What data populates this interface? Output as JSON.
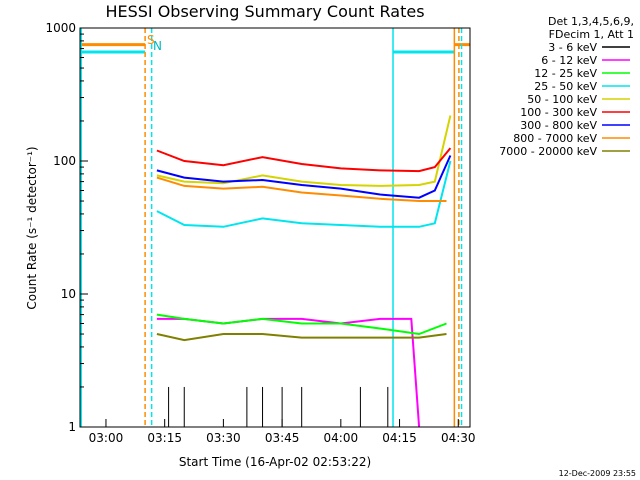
{
  "chart_data": {
    "type": "line",
    "title": "HESSI Observing Summary Count Rates",
    "xlabel": "Start Time (16-Apr-02 02:53:22)",
    "ylabel": "Count Rate (s⁻¹ detector⁻¹)",
    "x_scale": "time",
    "y_scale": "log",
    "xlim": [
      "02:53:22",
      "04:33:00"
    ],
    "ylim": [
      1,
      1000
    ],
    "x_ticks": [
      "03:00",
      "03:15",
      "03:30",
      "03:45",
      "04:00",
      "04:15",
      "04:30"
    ],
    "y_ticks": [
      "1",
      "10",
      "100",
      "1000"
    ],
    "grid": false,
    "legend_position": "top-right, outside plot",
    "legend_header": [
      "Det 1,3,4,5,6,9,",
      "FDecim 1, Att 1"
    ],
    "markers": [
      {
        "label": "S",
        "color": "#ff8c00"
      },
      {
        "label": "N",
        "color": "#00e5ee"
      }
    ],
    "vertical_lines": [
      {
        "time": "02:53:40",
        "color": "#00e5ee",
        "style": "solid"
      },
      {
        "time": "03:10:00",
        "color": "#ff8c00",
        "style": "dashed"
      },
      {
        "time": "03:11:40",
        "color": "#00e5ee",
        "style": "dashed"
      },
      {
        "time": "04:13:20",
        "color": "#00e5ee",
        "style": "solid"
      },
      {
        "time": "04:29:00",
        "color": "#ff8c00",
        "style": "solid"
      },
      {
        "time": "04:30:10",
        "color": "#ff8c00",
        "style": "dashed"
      },
      {
        "time": "04:30:50",
        "color": "#00e5ee",
        "style": "dashed"
      }
    ],
    "flags": [
      {
        "name": "S",
        "color": "#ff8c00",
        "level": 750,
        "ranges": [
          [
            "02:53:22",
            "03:10:00"
          ],
          [
            "04:29:00",
            "04:33:00"
          ]
        ]
      },
      {
        "name": "N",
        "color": "#00e5ee",
        "level": 660,
        "ranges": [
          [
            "02:53:22",
            "03:10:00"
          ],
          [
            "04:13:20",
            "04:29:00"
          ]
        ]
      }
    ],
    "series": [
      {
        "name": "3 - 6 keV",
        "color": "#000000",
        "x": [
          "03:16",
          "03:20",
          "03:36",
          "03:40",
          "03:45",
          "03:50",
          "04:05",
          "04:12"
        ],
        "y": [
          2.0,
          2.0,
          2.0,
          2.0,
          2.0,
          2.0,
          2.0,
          2.0
        ]
      },
      {
        "name": "6 - 12 keV",
        "color": "#ff00ff",
        "x": [
          "03:13",
          "03:20",
          "03:30",
          "03:40",
          "03:50",
          "04:00",
          "04:10",
          "04:18",
          "04:20"
        ],
        "y": [
          6.5,
          6.5,
          6.0,
          6.5,
          6.5,
          6.0,
          6.5,
          6.5,
          1.0
        ]
      },
      {
        "name": "12 - 25 keV",
        "color": "#00ff00",
        "x": [
          "03:13",
          "03:20",
          "03:30",
          "03:40",
          "03:50",
          "04:00",
          "04:10",
          "04:20",
          "04:27"
        ],
        "y": [
          7.0,
          6.5,
          6.0,
          6.5,
          6.0,
          6.0,
          5.5,
          5.0,
          6.0
        ]
      },
      {
        "name": "25 - 50 keV",
        "color": "#00e5ee",
        "x": [
          "03:13",
          "03:20",
          "03:30",
          "03:40",
          "03:50",
          "04:00",
          "04:10",
          "04:20",
          "04:24",
          "04:28"
        ],
        "y": [
          42,
          33,
          32,
          37,
          34,
          33,
          32,
          32,
          34,
          100
        ]
      },
      {
        "name": "50 - 100 keV",
        "color": "#d4d400",
        "x": [
          "03:13",
          "03:20",
          "03:30",
          "03:40",
          "03:50",
          "04:00",
          "04:10",
          "04:20",
          "04:24",
          "04:28"
        ],
        "y": [
          78,
          70,
          68,
          78,
          70,
          66,
          65,
          66,
          70,
          220
        ]
      },
      {
        "name": "100 - 300 keV",
        "color": "#ff0000",
        "x": [
          "03:13",
          "03:20",
          "03:30",
          "03:40",
          "03:50",
          "04:00",
          "04:10",
          "04:20",
          "04:24",
          "04:28"
        ],
        "y": [
          120,
          100,
          93,
          107,
          95,
          88,
          85,
          84,
          90,
          125
        ]
      },
      {
        "name": "300 - 800 keV",
        "color": "#0000ff",
        "x": [
          "03:13",
          "03:20",
          "03:30",
          "03:40",
          "03:50",
          "04:00",
          "04:10",
          "04:20",
          "04:24",
          "04:28"
        ],
        "y": [
          85,
          75,
          70,
          72,
          66,
          62,
          56,
          53,
          60,
          110
        ]
      },
      {
        "name": "800 - 7000 keV",
        "color": "#ff8c00",
        "x": [
          "03:13",
          "03:20",
          "03:30",
          "03:40",
          "03:50",
          "04:00",
          "04:10",
          "04:20",
          "04:27"
        ],
        "y": [
          75,
          65,
          62,
          64,
          58,
          55,
          52,
          50,
          50
        ]
      },
      {
        "name": "7000 - 20000 keV",
        "color": "#808000",
        "x": [
          "03:13",
          "03:20",
          "03:30",
          "03:40",
          "03:50",
          "04:00",
          "04:10",
          "04:20",
          "04:27"
        ],
        "y": [
          5.0,
          4.5,
          5.0,
          5.0,
          4.7,
          4.7,
          4.7,
          4.7,
          5.0
        ]
      }
    ],
    "footer_date": "12-Dec-2009 23:55"
  }
}
